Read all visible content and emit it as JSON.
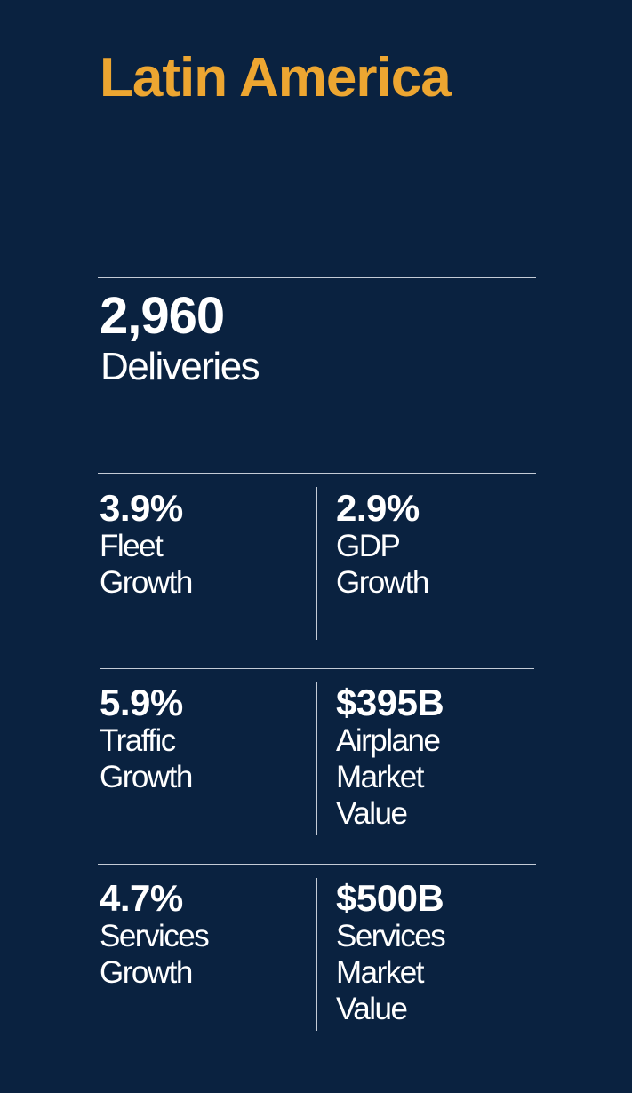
{
  "region": "Latin America",
  "deliveries": {
    "value": "2,960",
    "label": "Deliveries"
  },
  "stats": [
    {
      "value": "3.9%",
      "label": "Fleet\nGrowth"
    },
    {
      "value": "2.9%",
      "label": "GDP\nGrowth"
    },
    {
      "value": "5.9%",
      "label": "Traffic\nGrowth"
    },
    {
      "value": "$395B",
      "label": "Airplane\nMarket\nValue"
    },
    {
      "value": "4.7%",
      "label": "Services\nGrowth"
    },
    {
      "value": "$500B",
      "label": "Services\nMarket\nValue"
    }
  ],
  "colors": {
    "background": "#0a2240",
    "title": "#eda631",
    "text": "#ffffff",
    "rule": "#c4cbd6"
  }
}
